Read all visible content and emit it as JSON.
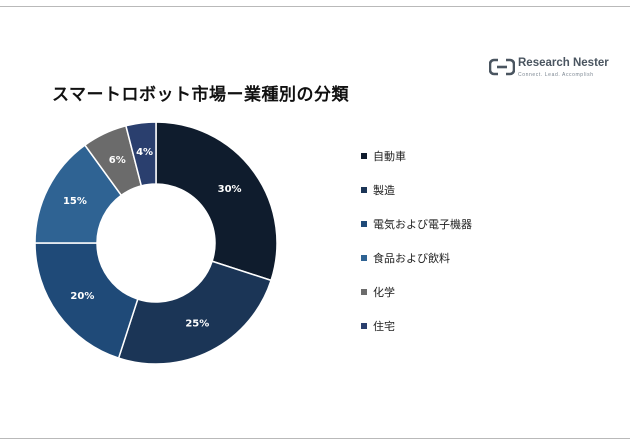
{
  "brand": {
    "name": "Research Nester",
    "tagline": "Connect. Lead. Accomplish"
  },
  "chart_data": {
    "type": "pie",
    "variant": "donut",
    "title": "スマートロボット市場ー業種別の分類",
    "categories": [
      "自動車",
      "製造",
      "電気および電子機器",
      "食品および飲料",
      "化学",
      "住宅"
    ],
    "values": [
      30,
      25,
      20,
      15,
      6,
      4
    ],
    "labels": [
      "30%",
      "25%",
      "20%",
      "15%",
      "6%",
      "4%"
    ],
    "colors": [
      "#0f1c2d",
      "#1b3556",
      "#1f4a78",
      "#2f6393",
      "#6b6b6b",
      "#2a3f6e"
    ],
    "label_colors": [
      "#ffffff",
      "#ffffff",
      "#ffffff",
      "#ffffff",
      "#ffffff",
      "#ffffff"
    ],
    "legend_position": "right"
  }
}
